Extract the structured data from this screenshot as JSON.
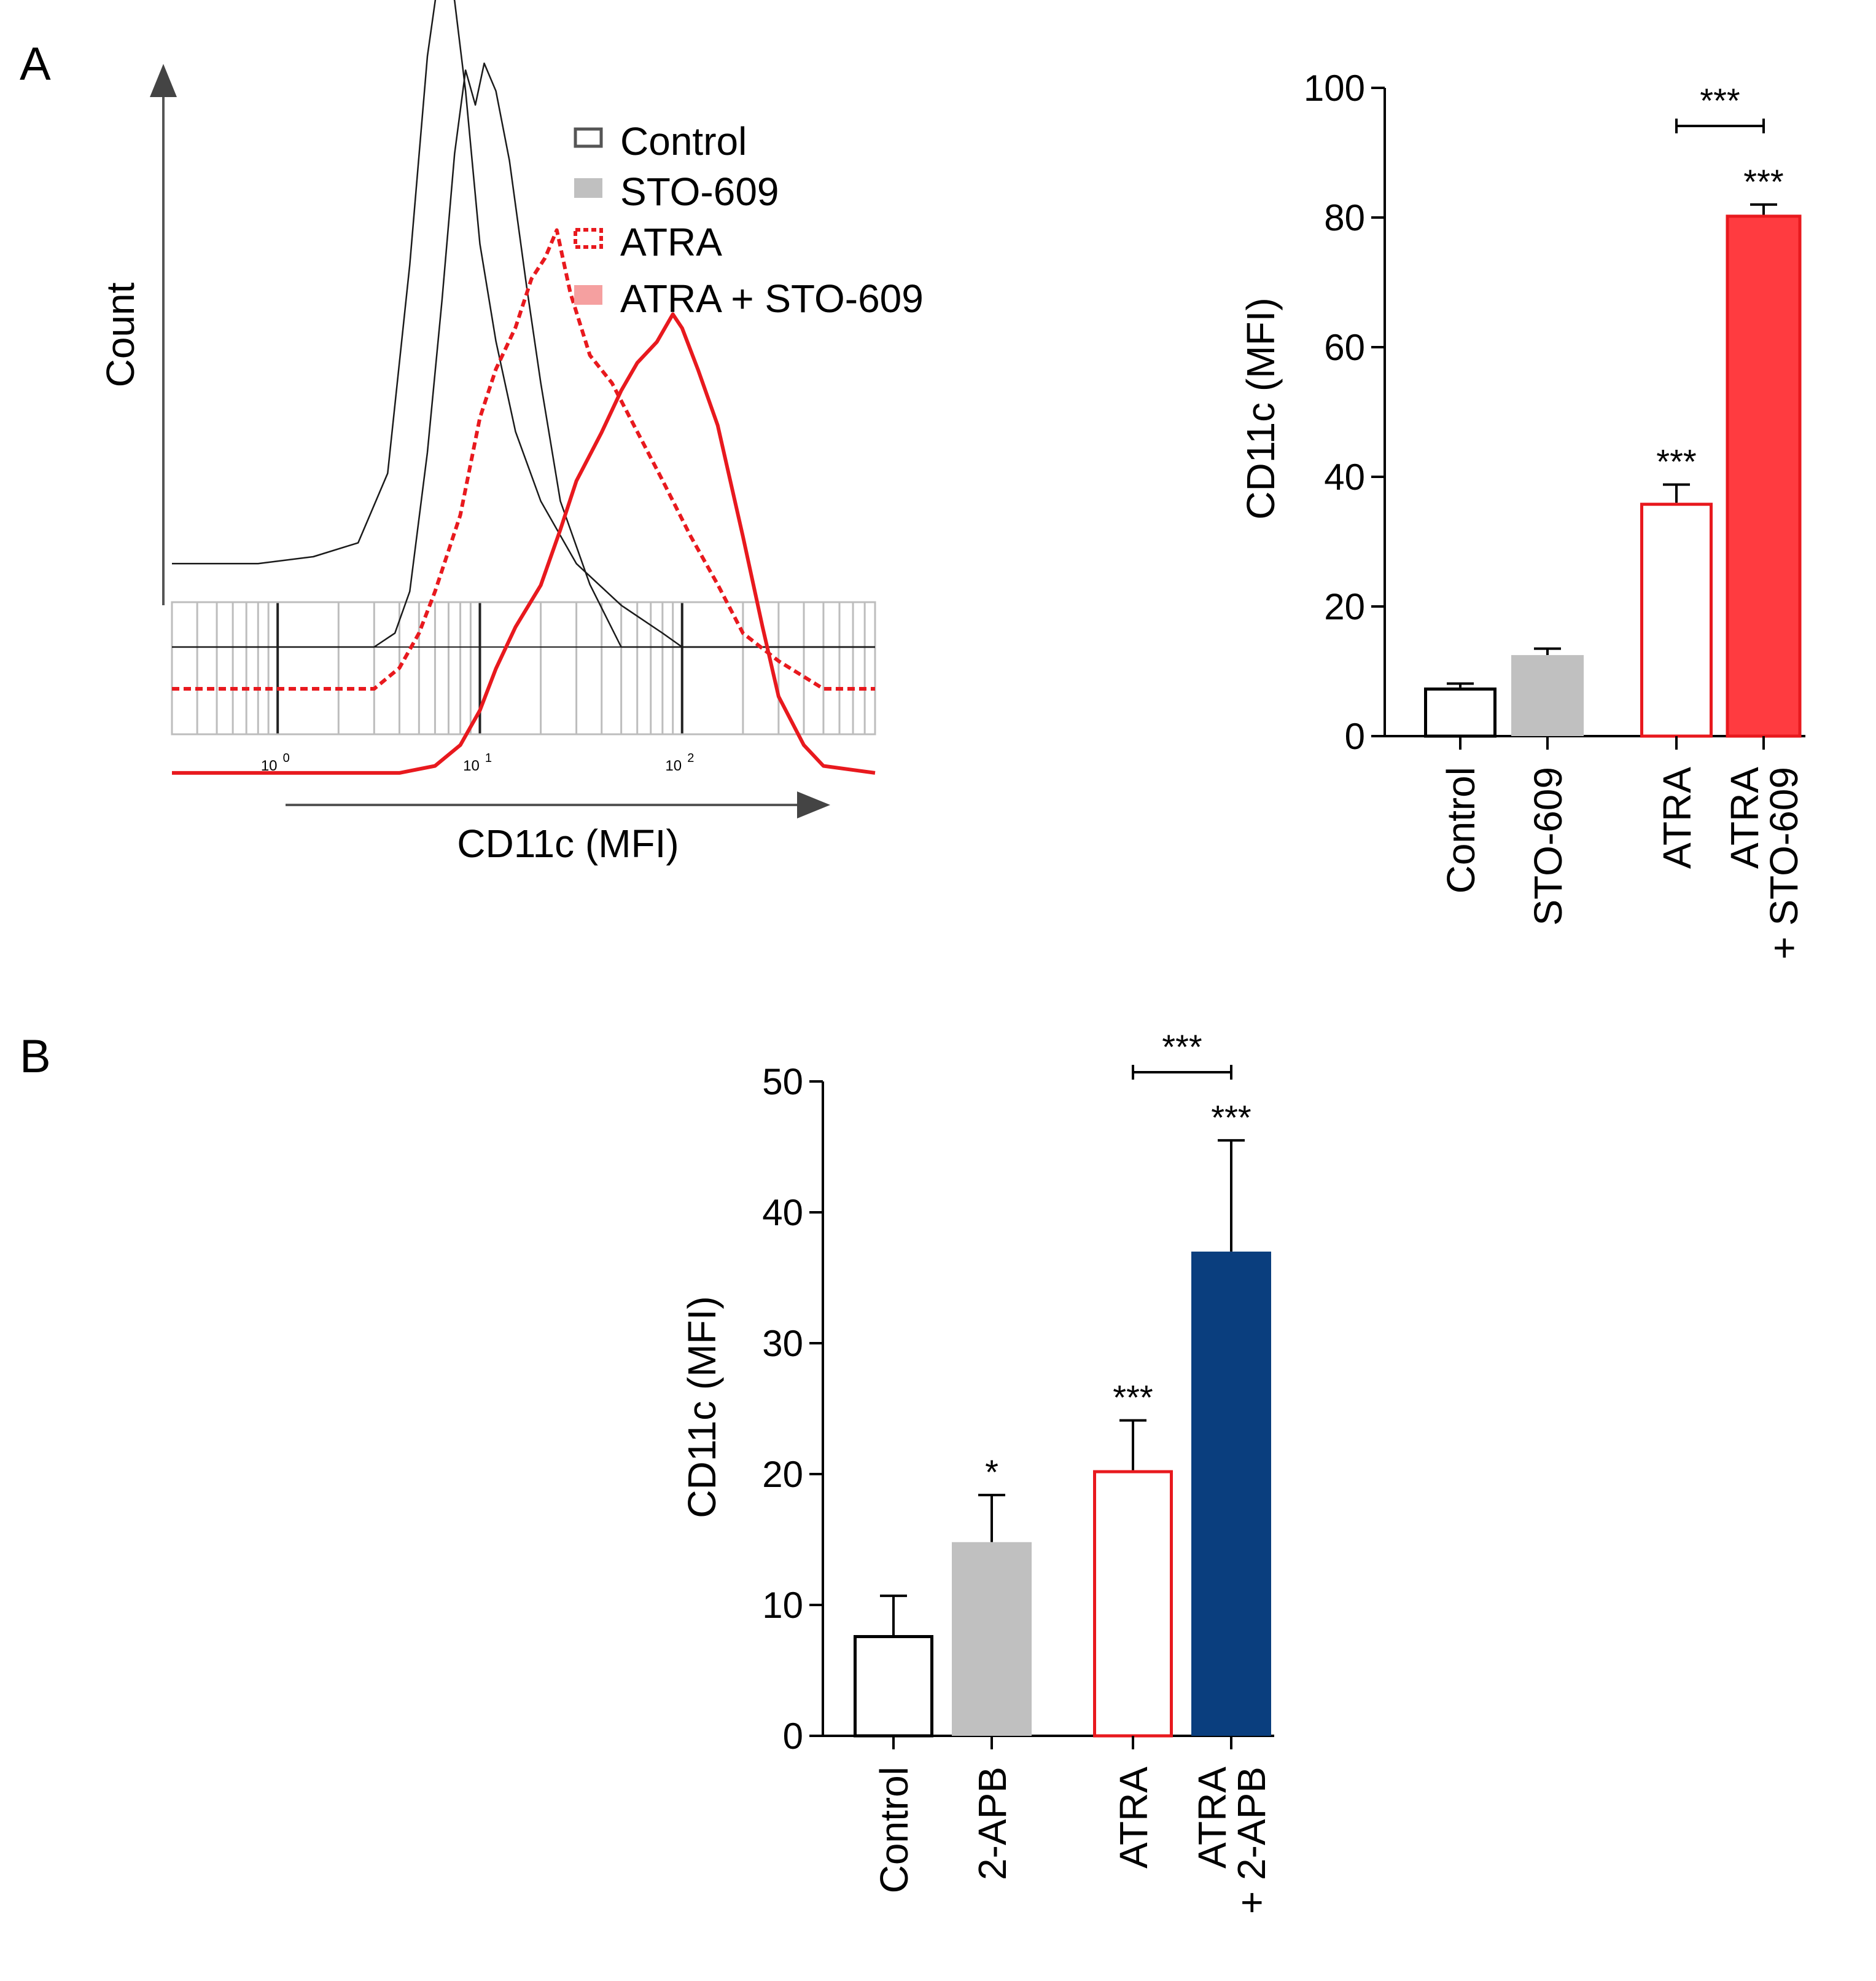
{
  "panel_labels": {
    "a": "A",
    "b": "B"
  },
  "colors": {
    "black": "#000000",
    "grey_bar": "#c0c0c0",
    "grid_grey": "#bdbdbd",
    "red_open": "#e8191e",
    "red_fill": "#ff3b40",
    "legend_pink": "#f5a0a0",
    "legend_red": "#e8191e",
    "navy": "#0a3e7e",
    "axis_arrow": "#555555"
  },
  "chart_data": [
    {
      "id": "histogram",
      "type": "line",
      "title": "",
      "xlabel": "CD11c (MFI)",
      "ylabel": "Count",
      "x_scale": "log",
      "x_range": [
        0.3,
        900
      ],
      "x_tick_labels": [
        {
          "value": 1,
          "base": "10",
          "exp": "0"
        },
        {
          "value": 10,
          "base": "10",
          "exp": "1"
        },
        {
          "value": 100,
          "base": "10",
          "exp": "2"
        }
      ],
      "legend": [
        {
          "name": "Control",
          "swatch": "outline"
        },
        {
          "name": "STO-609",
          "swatch": "grey"
        },
        {
          "name": "ATRA",
          "swatch": "red-dashed"
        },
        {
          "name": "ATRA + STO-609",
          "swatch": "pink"
        }
      ],
      "legend_position": "top-right",
      "series": [
        {
          "name": "Control",
          "x": [
            0.3,
            0.8,
            1.5,
            2.5,
            3.5,
            4.5,
            5.5,
            6.5,
            7.5,
            8.5,
            10,
            12,
            15,
            20,
            30,
            50,
            80,
            100,
            200,
            500,
            900
          ],
          "y": [
            0.12,
            0.12,
            0.13,
            0.15,
            0.25,
            0.55,
            0.85,
            1.0,
            0.93,
            0.8,
            0.58,
            0.44,
            0.31,
            0.21,
            0.12,
            0.06,
            0.02,
            0.0,
            0.0,
            0.0,
            0.0
          ]
        },
        {
          "name": "STO-609",
          "x": [
            0.3,
            1,
            2,
            3,
            3.8,
            4.5,
            5.5,
            6.5,
            7.5,
            8.5,
            9.5,
            10.5,
            12,
            14,
            17,
            20,
            25,
            35,
            50,
            80,
            130,
            200,
            900
          ],
          "y": [
            0.0,
            0.0,
            0.0,
            0.0,
            0.02,
            0.08,
            0.28,
            0.5,
            0.71,
            0.83,
            0.78,
            0.84,
            0.8,
            0.7,
            0.52,
            0.38,
            0.21,
            0.09,
            0.0,
            0.0,
            0.0,
            0.0,
            0.0
          ]
        },
        {
          "name": "ATRA",
          "x": [
            0.3,
            1,
            2,
            3,
            4,
            5,
            6,
            8,
            10,
            12,
            15,
            18,
            21,
            24,
            28,
            35,
            45,
            60,
            80,
            110,
            150,
            200,
            300,
            500,
            900
          ],
          "y": [
            0.0,
            0.0,
            0.0,
            0.0,
            0.03,
            0.08,
            0.14,
            0.25,
            0.39,
            0.46,
            0.52,
            0.59,
            0.62,
            0.66,
            0.57,
            0.48,
            0.44,
            0.37,
            0.3,
            0.22,
            0.15,
            0.08,
            0.04,
            0.0,
            0.0
          ]
        },
        {
          "name": "ATRA + STO-609",
          "x": [
            0.3,
            1,
            2,
            4,
            6,
            8,
            10,
            12,
            15,
            20,
            25,
            30,
            40,
            50,
            60,
            75,
            90,
            100,
            120,
            150,
            200,
            250,
            300,
            400,
            500,
            900
          ],
          "y": [
            -0.06,
            -0.06,
            -0.06,
            -0.06,
            -0.05,
            -0.02,
            0.03,
            0.09,
            0.15,
            0.21,
            0.29,
            0.36,
            0.43,
            0.49,
            0.53,
            0.56,
            0.6,
            0.58,
            0.52,
            0.44,
            0.28,
            0.15,
            0.05,
            -0.02,
            -0.05,
            -0.06
          ]
        }
      ]
    },
    {
      "id": "bar-a",
      "type": "bar",
      "title": "",
      "xlabel": "",
      "ylabel": "CD11c (MFI)",
      "ylim": [
        0,
        100
      ],
      "y_ticks": [
        0,
        20,
        40,
        60,
        80,
        100
      ],
      "categories": [
        "Control",
        "STO-609",
        "ATRA",
        "ATRA\n+ STO-609"
      ],
      "values": [
        7.5,
        12.5,
        36,
        80.2
      ],
      "errors": [
        0.6,
        1,
        2.8,
        1.8
      ],
      "significance": [
        "",
        "",
        "***",
        "***"
      ],
      "bracket": {
        "from": "ATRA",
        "to": "ATRA\n+ STO-609",
        "label": "***"
      }
    },
    {
      "id": "bar-b",
      "type": "bar",
      "title": "",
      "xlabel": "",
      "ylabel": "CD11c (MFI)",
      "ylim": [
        0,
        50
      ],
      "y_ticks": [
        0,
        10,
        20,
        30,
        40,
        50
      ],
      "categories": [
        "Control",
        "2-APB",
        "ATRA",
        "ATRA\n+ 2-APB"
      ],
      "values": [
        7.7,
        14.8,
        20.3,
        37
      ],
      "errors": [
        3,
        3.6,
        3.8,
        8.5
      ],
      "significance": [
        "",
        "*",
        "***",
        "***"
      ],
      "bracket": {
        "from": "ATRA",
        "to": "ATRA\n+ 2-APB",
        "label": "***"
      }
    }
  ]
}
